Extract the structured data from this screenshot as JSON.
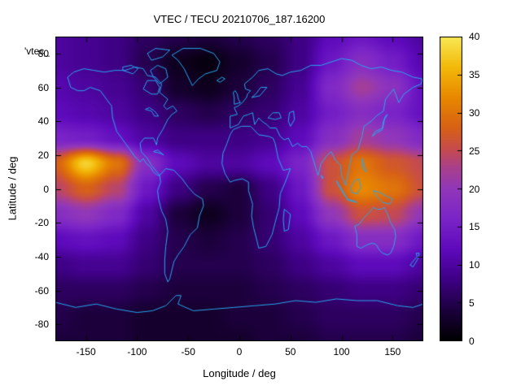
{
  "chart_data": {
    "type": "heatmap",
    "title": "VTEC / TECU 20210706_187.16200",
    "xlabel": "Longitude / deg",
    "ylabel": "Latitude / deg",
    "key_label": "'vtec_",
    "units": "TECU",
    "x_range": [
      -180,
      180
    ],
    "y_range": [
      -90,
      90
    ],
    "value_range": [
      0,
      40
    ],
    "x_ticks": [
      -150,
      -100,
      -50,
      0,
      50,
      100,
      150
    ],
    "y_ticks": [
      80,
      60,
      40,
      20,
      0,
      -20,
      -40,
      -60,
      -80
    ],
    "colorbar_ticks": [
      0,
      5,
      10,
      15,
      20,
      25,
      30,
      35,
      40
    ],
    "grid": {
      "lons": [
        -180,
        -150,
        -120,
        -90,
        -60,
        -30,
        0,
        30,
        60,
        90,
        120,
        150,
        180
      ],
      "lats": [
        90,
        75,
        60,
        45,
        30,
        15,
        0,
        -15,
        -30,
        -45,
        -60,
        -75,
        -90
      ],
      "values": [
        [
          10,
          9,
          8,
          6,
          5,
          4,
          5,
          6,
          8,
          12,
          14,
          12,
          10
        ],
        [
          10,
          9,
          8,
          5,
          2,
          1,
          3,
          5,
          8,
          14,
          18,
          15,
          11
        ],
        [
          11,
          10,
          9,
          7,
          3,
          2,
          4,
          6,
          9,
          17,
          22,
          19,
          13
        ],
        [
          12,
          11,
          10,
          8,
          6,
          5,
          6,
          7,
          10,
          15,
          18,
          16,
          13
        ],
        [
          16,
          15,
          13,
          10,
          8,
          8,
          8,
          9,
          12,
          18,
          22,
          20,
          17
        ],
        [
          28,
          38,
          30,
          18,
          12,
          10,
          10,
          12,
          16,
          26,
          30,
          27,
          25
        ],
        [
          24,
          28,
          24,
          14,
          8,
          5,
          4,
          8,
          14,
          26,
          32,
          30,
          26
        ],
        [
          18,
          20,
          17,
          10,
          4,
          2,
          4,
          7,
          12,
          20,
          26,
          25,
          20
        ],
        [
          12,
          13,
          12,
          8,
          5,
          4,
          5,
          7,
          10,
          14,
          18,
          18,
          14
        ],
        [
          8,
          9,
          9,
          7,
          5,
          5,
          5,
          6,
          8,
          10,
          12,
          12,
          10
        ],
        [
          6,
          6,
          6,
          5,
          4,
          4,
          4,
          5,
          6,
          7,
          8,
          8,
          7
        ],
        [
          5,
          4,
          4,
          3,
          3,
          3,
          4,
          4,
          5,
          6,
          6,
          6,
          5
        ],
        [
          4,
          4,
          4,
          3,
          3,
          3,
          3,
          4,
          4,
          5,
          5,
          5,
          4
        ]
      ]
    },
    "colormap_stops": [
      [
        0.0,
        0,
        0,
        0
      ],
      [
        0.1,
        28,
        0,
        60
      ],
      [
        0.2,
        62,
        0,
        132
      ],
      [
        0.3,
        94,
        10,
        188
      ],
      [
        0.4,
        122,
        36,
        200
      ],
      [
        0.5,
        145,
        55,
        186
      ],
      [
        0.57,
        170,
        64,
        140
      ],
      [
        0.63,
        198,
        75,
        78
      ],
      [
        0.7,
        215,
        97,
        22
      ],
      [
        0.8,
        232,
        136,
        0
      ],
      [
        0.9,
        243,
        185,
        10
      ],
      [
        1.0,
        248,
        233,
        85
      ]
    ],
    "coastline_color": "#25a8ee",
    "frame_color": "#000000",
    "coastlines": [
      [
        -168,
        66,
        -165,
        60,
        -158,
        58,
        -152,
        58,
        -146,
        60,
        -136,
        58,
        -130,
        53,
        -125,
        49,
        -124,
        42,
        -120,
        34,
        -114,
        29,
        -108,
        24,
        -102,
        19,
        -97,
        16,
        -94,
        18,
        -91,
        15,
        -87,
        13,
        -84,
        10,
        -80,
        8,
        -78,
        8,
        -82,
        11,
        -86,
        14,
        -90,
        18,
        -96,
        22,
        -97,
        27,
        -93,
        30,
        -88,
        30,
        -84,
        30,
        -81,
        26,
        -80,
        30,
        -75,
        35,
        -70,
        41,
        -66,
        44,
        -61,
        46,
        -65,
        49,
        -71,
        47,
        -74,
        49,
        -70,
        53,
        -78,
        57,
        -76,
        62,
        -82,
        66,
        -90,
        67,
        -94,
        71,
        -102,
        72,
        -112,
        70,
        -122,
        70,
        -132,
        69,
        -142,
        70,
        -152,
        71,
        -162,
        69,
        -168,
        66
      ],
      [
        -46,
        61,
        -40,
        65,
        -33,
        68,
        -22,
        70,
        -19,
        75,
        -25,
        80,
        -38,
        83,
        -55,
        83,
        -66,
        79,
        -60,
        76,
        -54,
        71,
        -50,
        66,
        -46,
        61
      ],
      [
        -78,
        8,
        -72,
        12,
        -64,
        11,
        -56,
        6,
        -50,
        1,
        -44,
        -3,
        -36,
        -6,
        -35,
        -10,
        -39,
        -16,
        -41,
        -23,
        -48,
        -27,
        -54,
        -34,
        -60,
        -39,
        -64,
        -43,
        -66,
        -48,
        -68,
        -53,
        -70,
        -55,
        -73,
        -50,
        -73,
        -42,
        -72,
        -34,
        -70,
        -25,
        -72,
        -18,
        -76,
        -13,
        -79,
        -6,
        -80,
        -1,
        -77,
        4,
        -78,
        8
      ],
      [
        -6,
        35,
        2,
        37,
        11,
        37,
        19,
        32,
        29,
        31,
        33,
        30,
        35,
        27,
        38,
        18,
        43,
        11,
        50,
        12,
        45,
        4,
        40,
        -3,
        39,
        -11,
        35,
        -20,
        32,
        -27,
        26,
        -34,
        19,
        -35,
        17,
        -30,
        14,
        -23,
        12,
        -16,
        13,
        -9,
        9,
        -1,
        9,
        4,
        3,
        6,
        -5,
        5,
        -9,
        4,
        -14,
        9,
        -17,
        15,
        -16,
        21,
        -12,
        27,
        -9,
        32,
        -6,
        35
      ],
      [
        -9,
        36,
        -9,
        43,
        -2,
        44,
        -5,
        48,
        -1,
        49,
        3,
        51,
        7,
        54,
        8,
        56,
        11,
        58,
        6,
        59,
        5,
        62,
        13,
        66,
        19,
        70,
        28,
        71,
        36,
        68,
        42,
        67,
        50,
        69,
        60,
        70,
        70,
        73,
        80,
        73,
        90,
        75,
        100,
        77,
        110,
        76,
        119,
        73,
        129,
        71,
        139,
        72,
        149,
        70,
        159,
        69,
        170,
        66,
        179,
        65,
        178,
        62,
        170,
        60,
        161,
        56,
        156,
        51,
        151,
        59,
        143,
        53,
        141,
        46,
        134,
        43,
        129,
        40,
        122,
        37,
        120,
        31,
        116,
        23,
        110,
        20,
        107,
        11,
        104,
        2,
        100,
        8,
        99,
        14,
        94,
        17,
        90,
        22,
        86,
        20,
        80,
        15,
        77,
        8,
        73,
        16,
        70,
        22,
        66,
        25,
        61,
        25,
        57,
        27,
        52,
        25,
        48,
        30,
        44,
        29,
        40,
        31,
        36,
        36,
        30,
        36,
        27,
        38,
        22,
        40,
        19,
        42,
        15,
        38,
        13,
        45,
        9,
        44,
        4,
        43,
        -1,
        38,
        -5,
        37,
        -9,
        36
      ],
      [
        113,
        -22,
        115,
        -27,
        115,
        -34,
        119,
        -35,
        125,
        -33,
        130,
        -32,
        134,
        -33,
        137,
        -36,
        140,
        -38,
        145,
        -39,
        148,
        -38,
        151,
        -34,
        153,
        -28,
        152,
        -24,
        148,
        -20,
        145,
        -15,
        142,
        -11,
        138,
        -12,
        135,
        -12,
        131,
        -11,
        127,
        -14,
        122,
        -17,
        117,
        -21,
        113,
        -22
      ],
      [
        -180,
        -67,
        -160,
        -70,
        -140,
        -68,
        -120,
        -71,
        -100,
        -73,
        -85,
        -72,
        -72,
        -69,
        -62,
        -63,
        -57,
        -63,
        -60,
        -68,
        -45,
        -72,
        -25,
        -71,
        -5,
        -70,
        15,
        -69,
        35,
        -68,
        55,
        -66,
        75,
        -67,
        95,
        -65,
        115,
        -66,
        135,
        -66,
        155,
        -69,
        170,
        -70,
        180,
        -68
      ],
      [
        44,
        -12,
        50,
        -15,
        48,
        -24,
        44,
        -25,
        43,
        -18,
        44,
        -12
      ],
      [
        -5,
        50,
        1,
        51,
        -1,
        53,
        -2,
        56,
        -4,
        58,
        -6,
        57,
        -5,
        54,
        -5,
        50
      ],
      [
        -22,
        64,
        -17,
        66,
        -14,
        65,
        -19,
        63,
        -22,
        64
      ],
      [
        130,
        31,
        133,
        34,
        137,
        35,
        140,
        36,
        141,
        40,
        143,
        43,
        145,
        44,
        142,
        41,
        140,
        35,
        134,
        33,
        130,
        31
      ],
      [
        109,
        1,
        113,
        5,
        117,
        6,
        119,
        1,
        115,
        -3,
        110,
        -2,
        109,
        1
      ],
      [
        95,
        5,
        102,
        -2,
        106,
        -6,
        102,
        -3,
        96,
        3,
        95,
        5
      ],
      [
        105,
        -6,
        112,
        -7,
        115,
        -8,
        108,
        -7,
        105,
        -6
      ],
      [
        131,
        -1,
        137,
        -2,
        143,
        -4,
        150,
        -6,
        147,
        -9,
        140,
        -8,
        134,
        -4,
        131,
        -1
      ],
      [
        120,
        18,
        122,
        14,
        124,
        10,
        121,
        12,
        120,
        18
      ],
      [
        167,
        -45,
        171,
        -42,
        174,
        -40,
        173,
        -38,
        176,
        -38,
        175,
        -41,
        170,
        -46,
        167,
        -45
      ],
      [
        -84,
        22,
        -77,
        21,
        -74,
        20,
        -80,
        23,
        -84,
        22
      ],
      [
        -78,
        62,
        -70,
        66,
        -72,
        71,
        -80,
        73,
        -87,
        70,
        -84,
        66,
        -78,
        62
      ],
      [
        -114,
        70,
        -104,
        68,
        -99,
        71,
        -106,
        73,
        -114,
        72,
        -114,
        70
      ],
      [
        -86,
        76,
        -75,
        78,
        -68,
        82,
        -82,
        83,
        -90,
        80,
        -86,
        76
      ],
      [
        -92,
        47,
        -86,
        46,
        -83,
        43,
        -79,
        43,
        -83,
        46,
        -88,
        48,
        -92,
        47
      ],
      [
        50,
        37,
        54,
        41,
        53,
        46,
        49,
        45,
        48,
        40,
        50,
        37
      ],
      [
        28,
        42,
        33,
        45,
        39,
        45,
        41,
        42,
        35,
        41,
        28,
        42
      ],
      [
        -94,
        59,
        -86,
        56,
        -80,
        56,
        -78,
        60,
        -82,
        64,
        -90,
        64,
        -94,
        59
      ],
      [
        12,
        54,
        20,
        55,
        27,
        60,
        21,
        60,
        16,
        56,
        12,
        54
      ],
      [
        80,
        8,
        82,
        7,
        81,
        6,
        80,
        8
      ]
    ]
  }
}
